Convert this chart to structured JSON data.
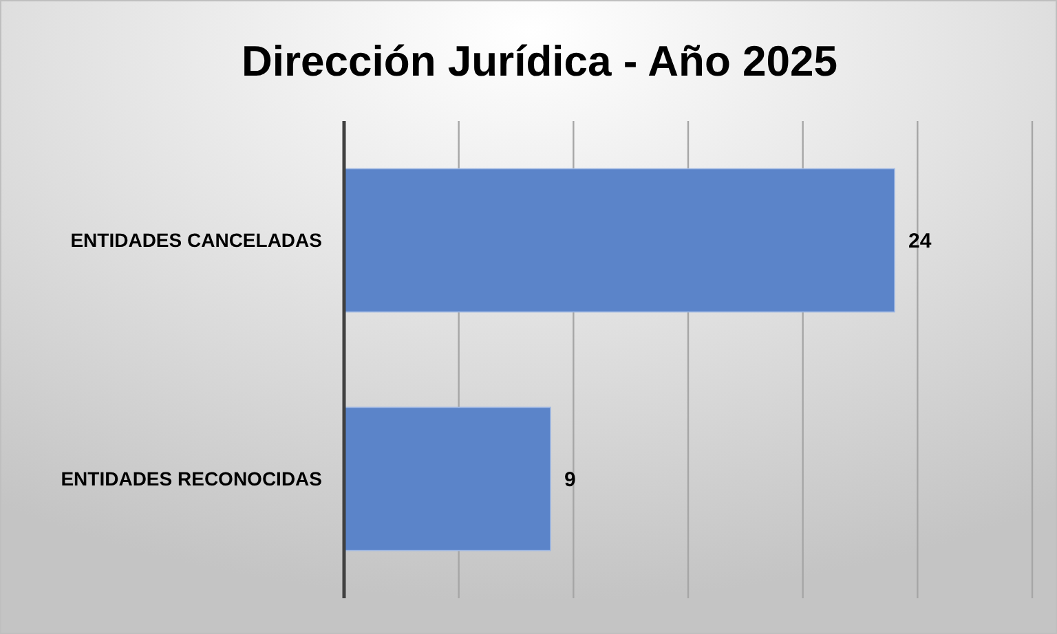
{
  "chart_data": {
    "type": "bar",
    "orientation": "horizontal",
    "title": "Dirección Jurídica - Año 2025",
    "categories": [
      "ENTIDADES CANCELADAS",
      "ENTIDADES RECONOCIDAS"
    ],
    "values": [
      24,
      9
    ],
    "color": "#5b84c9",
    "xlim": [
      0,
      30
    ],
    "xticks": [
      {
        "value": 0,
        "label": null
      },
      {
        "value": 5,
        "label": null
      },
      {
        "value": 10,
        "label": null
      },
      {
        "value": 15,
        "label": null
      },
      {
        "value": 20,
        "label": null
      },
      {
        "value": 25,
        "label": null
      },
      {
        "value": 30,
        "label": null
      }
    ],
    "grid": "x",
    "tick_labels": "y",
    "data_labels": true
  }
}
